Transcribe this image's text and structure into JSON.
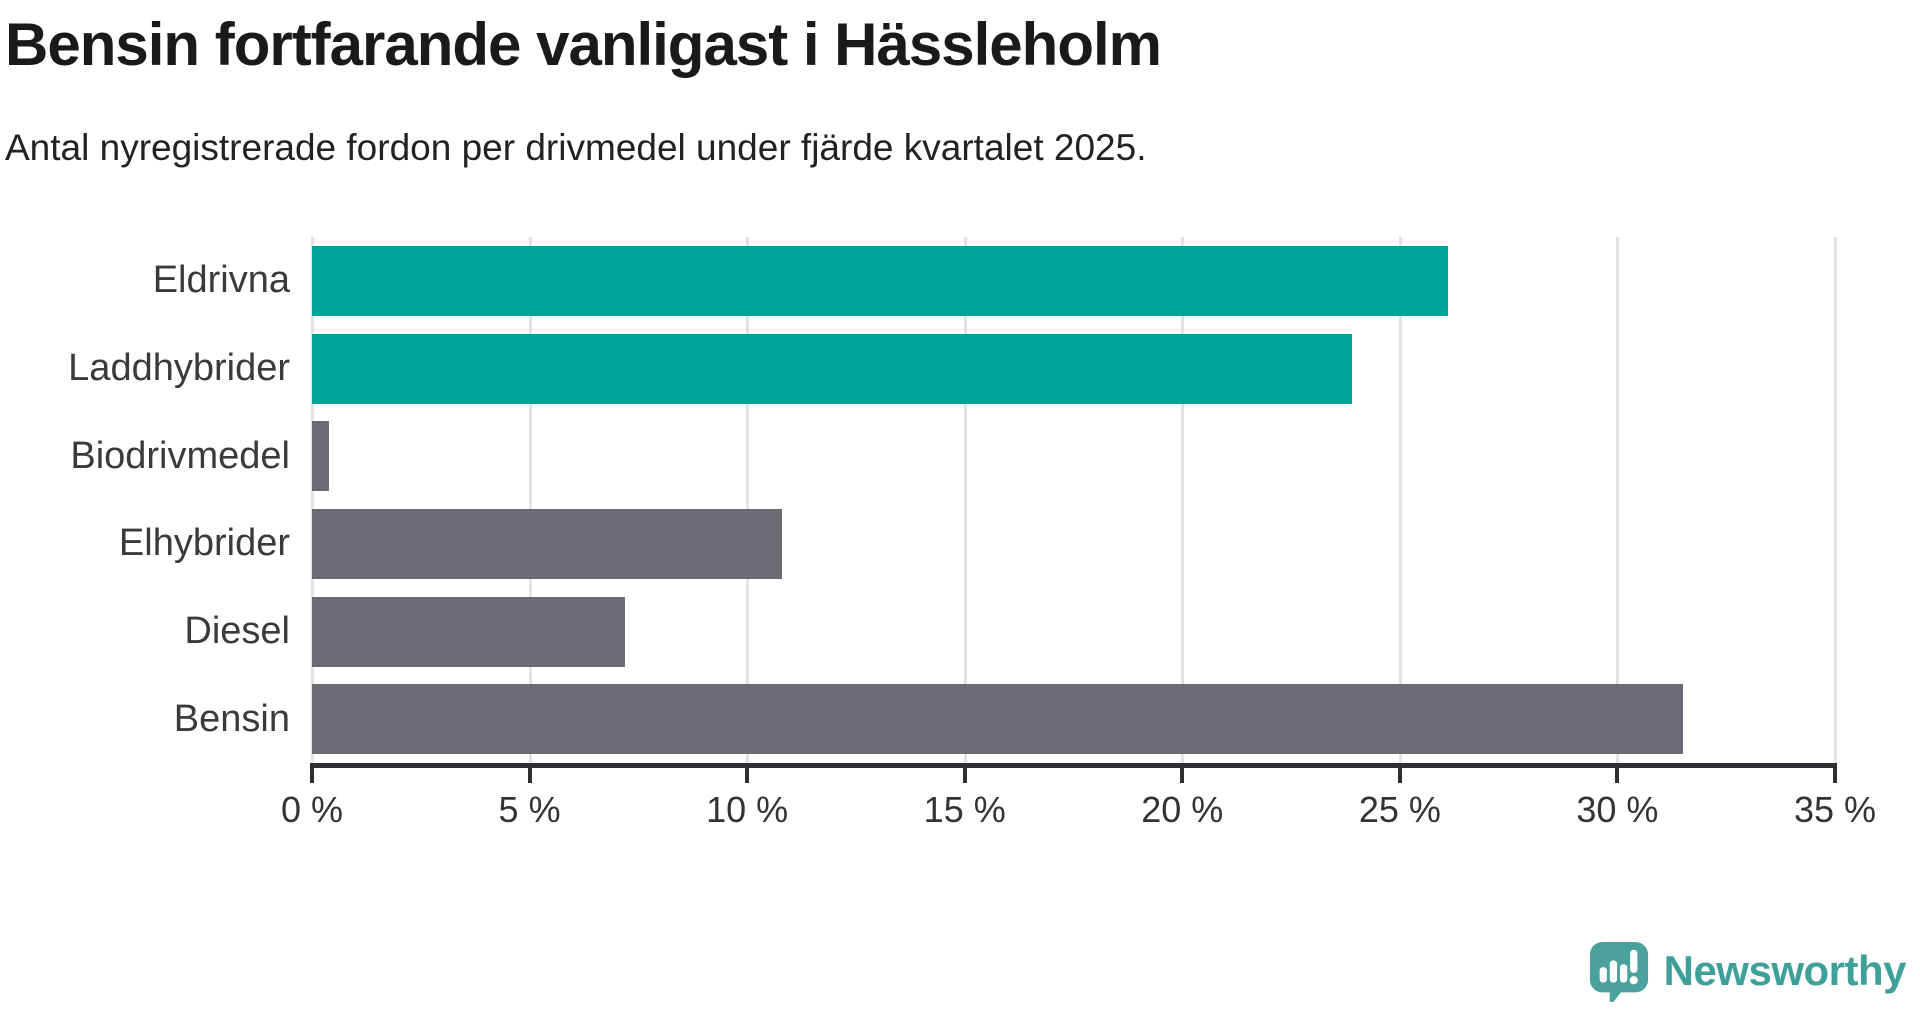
{
  "chart_data": {
    "type": "bar",
    "orientation": "horizontal",
    "title": "Bensin fortfarande vanligast i Hässleholm",
    "subtitle": "Antal nyregistrerade fordon per drivmedel under fjärde kvartalet 2025.",
    "categories": [
      "Eldrivna",
      "Laddhybrider",
      "Biodrivmedel",
      "Elhybrider",
      "Diesel",
      "Bensin"
    ],
    "values": [
      26.1,
      23.9,
      0.4,
      10.8,
      7.2,
      31.5
    ],
    "unit": "%",
    "xlim": [
      0,
      35
    ],
    "x_tick_values": [
      0,
      5,
      10,
      15,
      20,
      25,
      30,
      35
    ],
    "x_tick_labels": [
      "0 %",
      "5 %",
      "10 %",
      "15 %",
      "20 %",
      "25 %",
      "30 %",
      "35 %"
    ],
    "grid": "vertical-gridlines-on",
    "legend": "none",
    "bar_colors": [
      "#00a29a",
      "#00a29a",
      "#6b6b73",
      "#6b6b73",
      "#6b6b73",
      "#6b6b73"
    ]
  },
  "colors": {
    "accent_teal": "#00a29a",
    "neutral_gray": "#6b6b73",
    "gridline": "#e3e3e3",
    "axis": "#2f2f33",
    "logo_teal": "#3fa09a"
  },
  "branding": {
    "logo_text": "Newsworthy",
    "logo_icon": "speech-bubble-bar-chart-exclamation"
  }
}
